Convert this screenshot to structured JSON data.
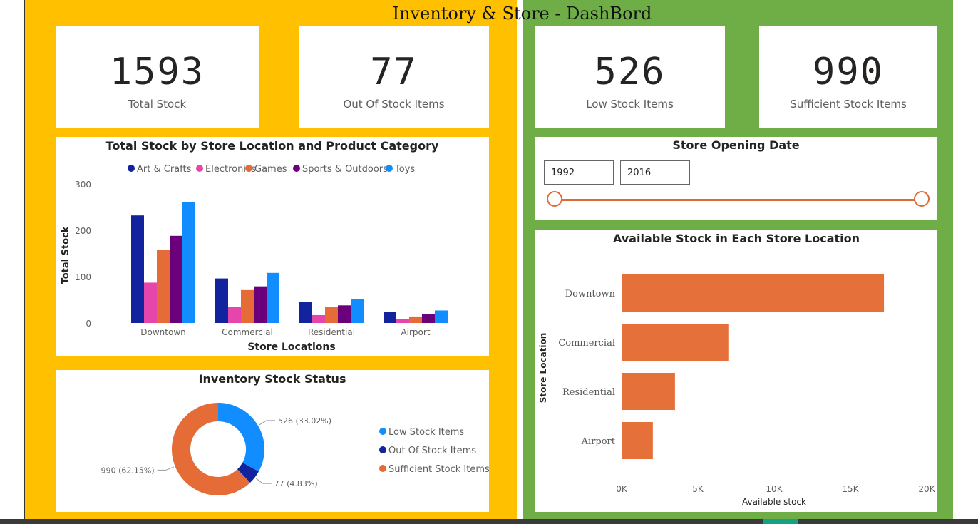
{
  "dashboard": {
    "title": "Inventory & Store - DashBord"
  },
  "kpis": [
    {
      "value": "1593",
      "label": "Total Stock"
    },
    {
      "value": "77",
      "label": "Out Of Stock Items"
    },
    {
      "value": "526",
      "label": "Low Stock Items"
    },
    {
      "value": "990",
      "label": "Sufficient Stock Items"
    }
  ],
  "colors": {
    "left_panel": "#ffc000",
    "right_panel": "#6fad46",
    "art_crafts": "#12239e",
    "electronics": "#e645ab",
    "games": "#e66c37",
    "sports": "#6b007b",
    "toys": "#118dff",
    "hbar": "#e6703a"
  },
  "chart_data": [
    {
      "type": "bar",
      "title": "Total Stock by Store Location and Product Category",
      "xlabel": "Store Locations",
      "ylabel": "Total Stock",
      "categories": [
        "Downtown",
        "Commercial",
        "Residential",
        "Airport"
      ],
      "ylim": [
        0,
        300
      ],
      "yticks": [
        0,
        100,
        200,
        300
      ],
      "legend": "top",
      "series": [
        {
          "name": "Art & Crafts",
          "color": "#12239e",
          "values": [
            232,
            96,
            45,
            24
          ]
        },
        {
          "name": "Electronics",
          "color": "#e645ab",
          "values": [
            87,
            35,
            17,
            9
          ]
        },
        {
          "name": "Games",
          "color": "#e66c37",
          "values": [
            157,
            71,
            35,
            14
          ]
        },
        {
          "name": "Sports & Outdoors",
          "color": "#6b007b",
          "values": [
            188,
            79,
            38,
            19
          ]
        },
        {
          "name": "Toys",
          "color": "#118dff",
          "values": [
            260,
            108,
            51,
            27
          ]
        }
      ]
    },
    {
      "type": "pie",
      "title": "Inventory Stock Status",
      "legend": "right",
      "slices": [
        {
          "name": "Low Stock Items",
          "value": 526,
          "percent": "33.02%",
          "label": "526 (33.02%)",
          "color": "#118dff"
        },
        {
          "name": "Out Of Stock Items",
          "value": 77,
          "percent": "4.83%",
          "label": "77 (4.83%)",
          "color": "#12239e"
        },
        {
          "name": "Sufficient Stock Items",
          "value": 990,
          "percent": "62.15%",
          "label": "990 (62.15%)",
          "color": "#e66c37"
        }
      ]
    },
    {
      "type": "bar",
      "orientation": "horizontal",
      "title": "Available Stock in Each Store Location",
      "xlabel": "Available stock",
      "ylabel": "Store Location",
      "categories": [
        "Downtown",
        "Commercial",
        "Residential",
        "Airport"
      ],
      "values": [
        17200,
        7000,
        3500,
        2050
      ],
      "xlim": [
        0,
        20000
      ],
      "xticks": [
        "0K",
        "5K",
        "10K",
        "15K",
        "20K"
      ],
      "color": "#e6703a"
    }
  ],
  "slicer": {
    "title": "Store Opening Date",
    "start_year": "1992",
    "end_year": "2016"
  }
}
